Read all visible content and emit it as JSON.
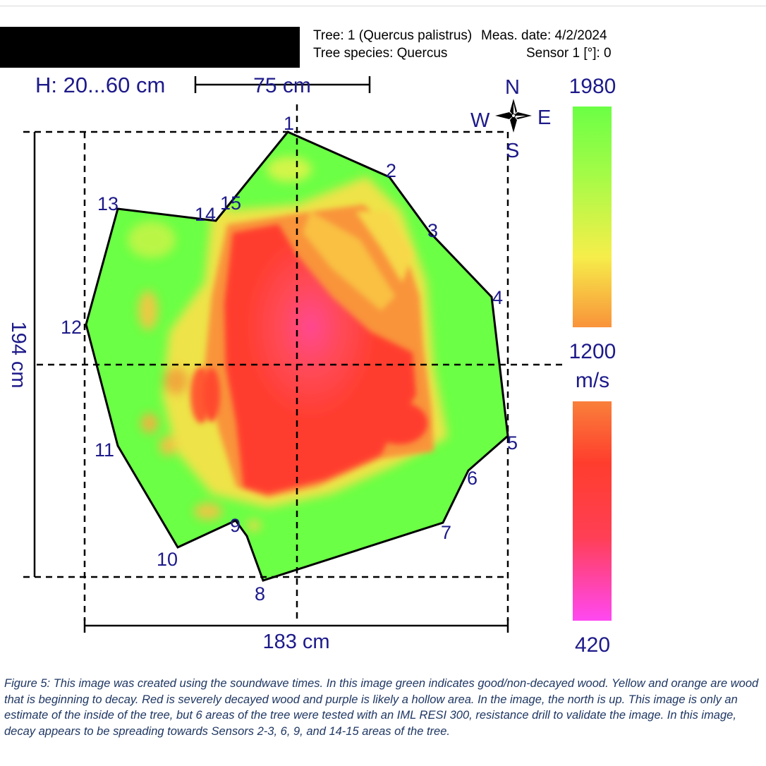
{
  "header": {
    "tree": "Tree: 1 (Quercus palistrus)",
    "species": "Tree species: Quercus",
    "meas_date": "Meas. date: 4/2/2024",
    "sensor": "Sensor 1 [°]: 0"
  },
  "diagram": {
    "height_range": "H: 20...60 cm",
    "scale_bar": "75 cm",
    "depth": "194 cm",
    "width": "183 cm",
    "compass": {
      "n": "N",
      "s": "S",
      "e": "E",
      "w": "W"
    },
    "sensors": [
      "1",
      "2",
      "3",
      "4",
      "5",
      "6",
      "7",
      "8",
      "9",
      "10",
      "11",
      "12",
      "13",
      "14",
      "15"
    ]
  },
  "legend": {
    "top_value": "1980",
    "mid_value": "1200",
    "unit": "m/s",
    "bottom_value": "420",
    "colors": {
      "green": "#6bff45",
      "yellow": "#f4ee4a",
      "orange": "#f9933a",
      "red": "#ff3d2d",
      "magenta": "#ff48f2"
    }
  },
  "caption": "Figure 5: This image was created using the soundwave times. In this image green indicates good/non-decayed wood. Yellow and orange are wood that is beginning to decay. Red is severely decayed wood and purple is likely a hollow area. In the image, the north is up. This image is only an estimate of the inside of the tree, but 6 areas of the tree were tested with an IML RESI 300, resistance drill to validate the image. In this image, decay appears to be spreading towards Sensors 2-3, 6, 9, and 14-15 areas of the tree."
}
